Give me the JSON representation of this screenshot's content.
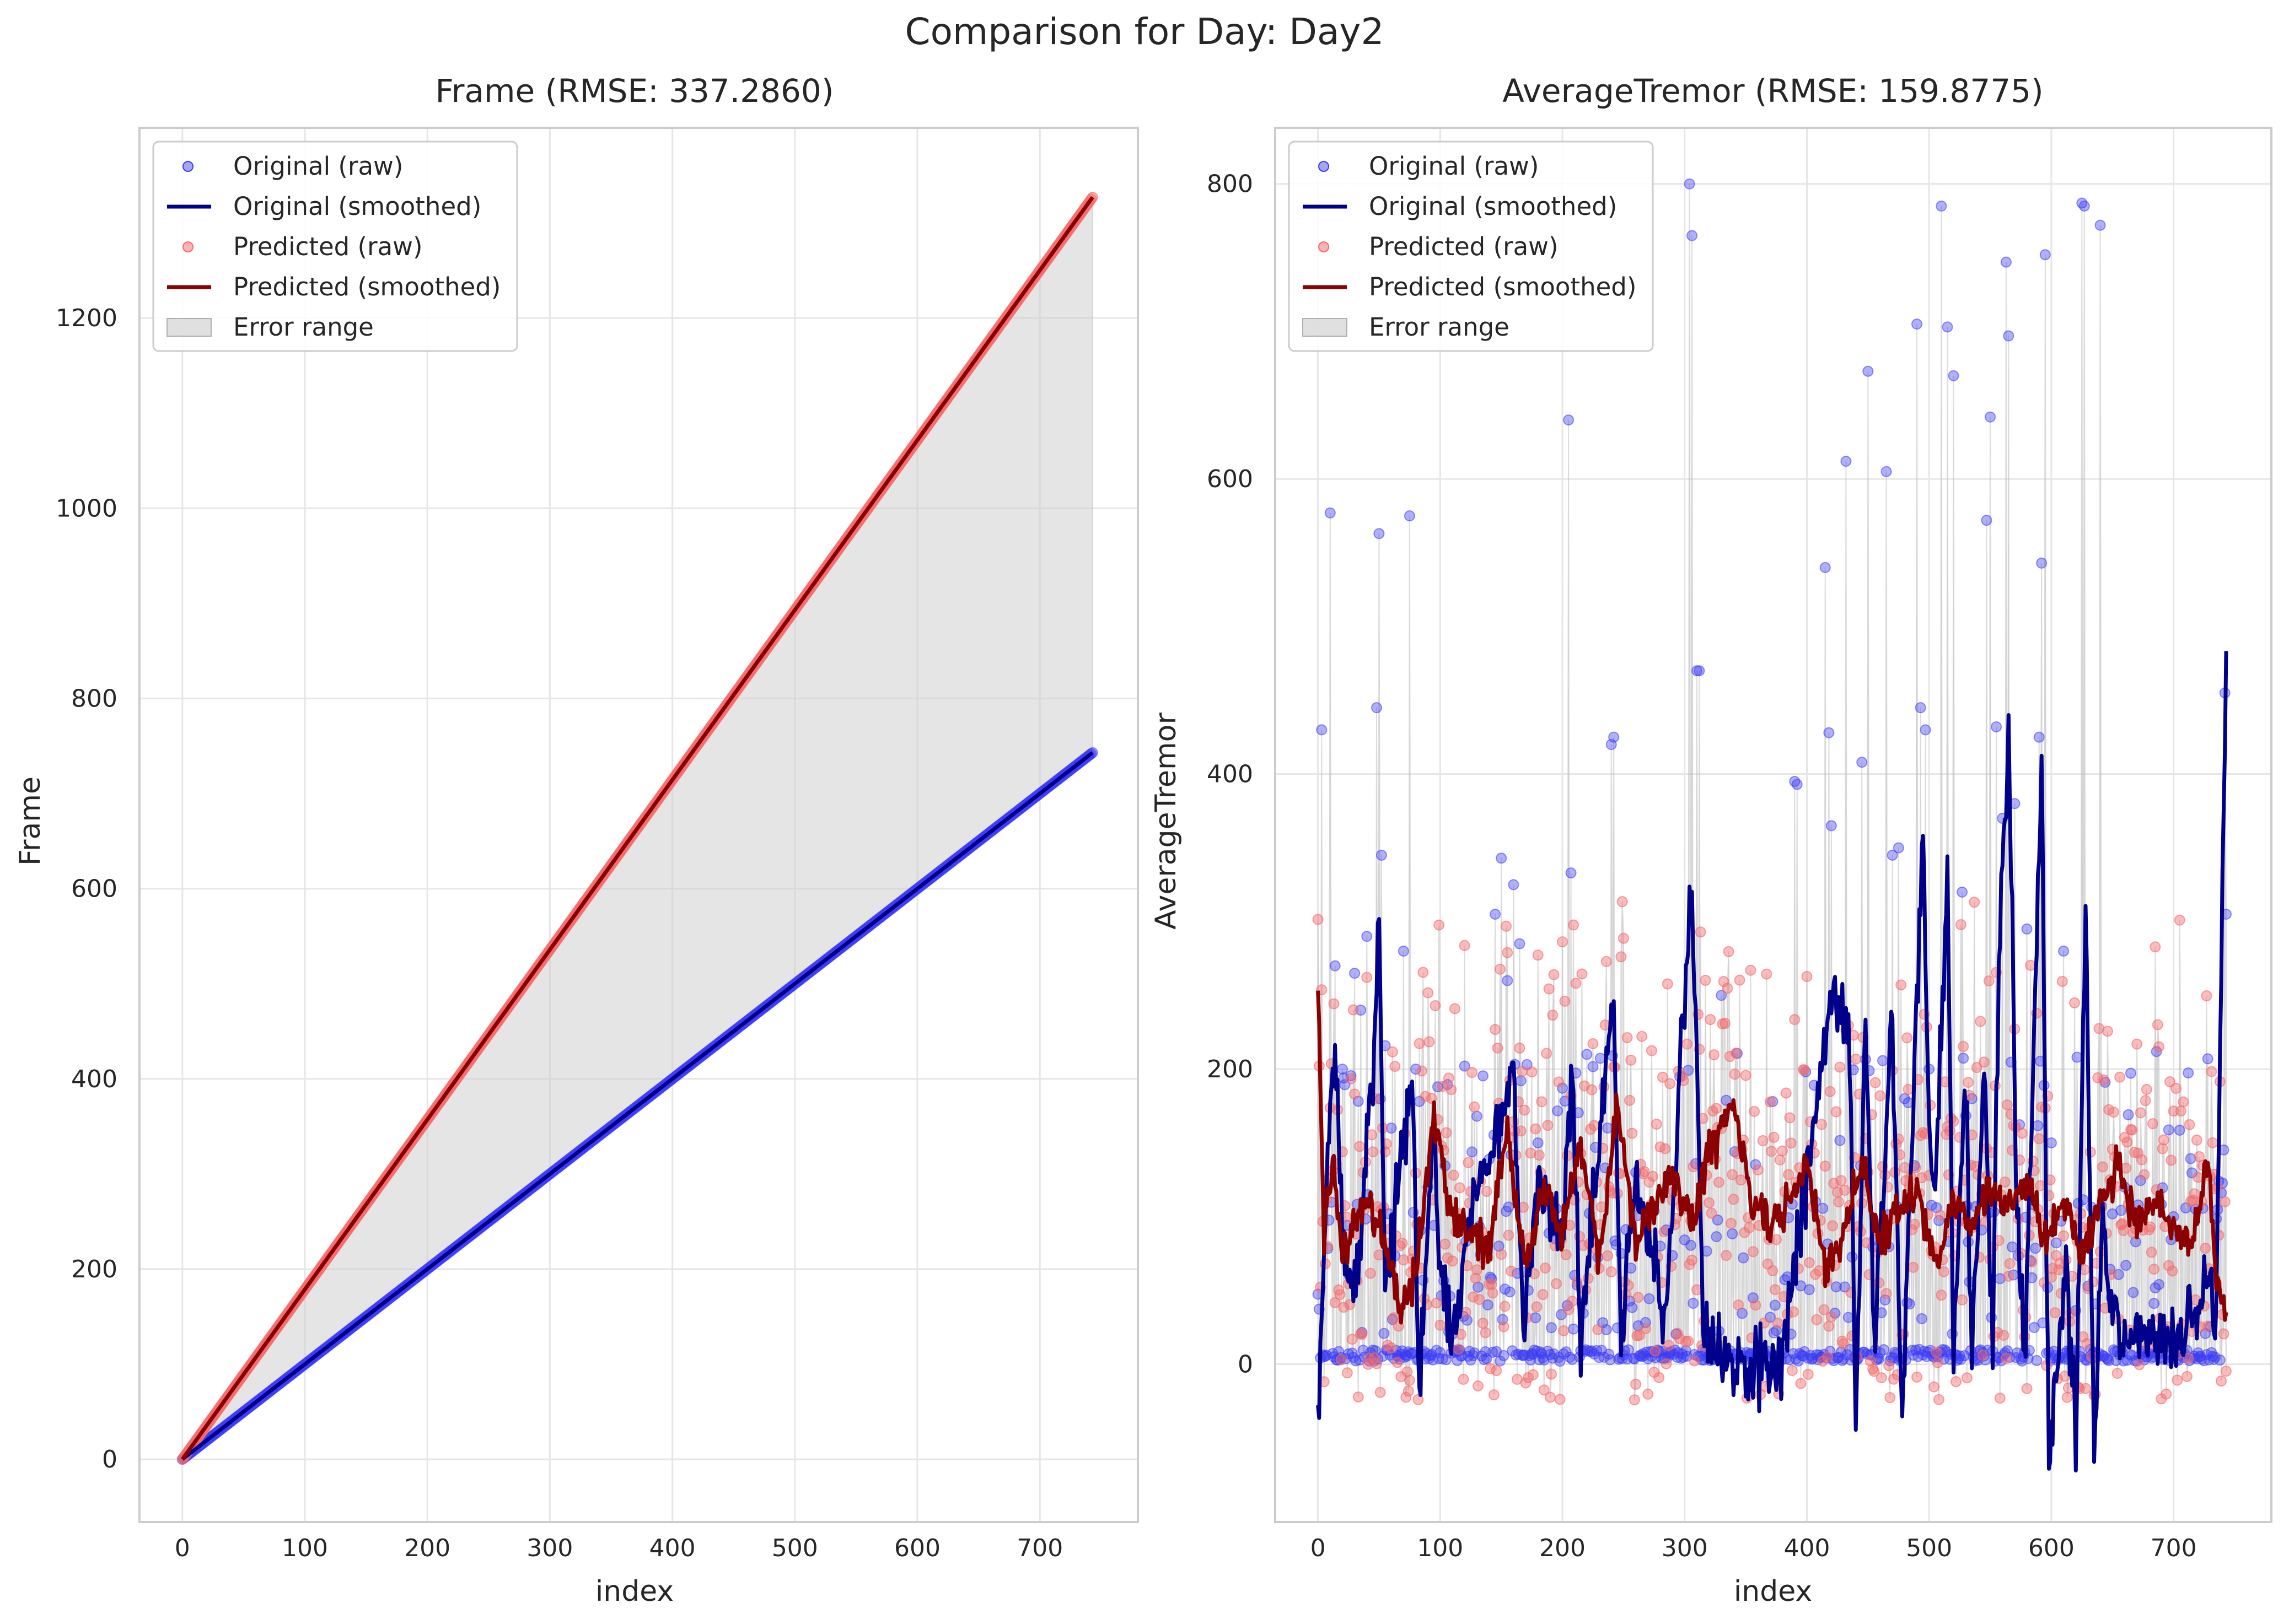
{
  "figure": {
    "suptitle": "Comparison for Day: Day2"
  },
  "colors": {
    "original": "#00008b",
    "original_raw": "#3b3bf5",
    "predicted": "#8b0000",
    "predicted_raw": "#f46a6a",
    "error_fill": "#cccccc",
    "grid": "#e6e6e6",
    "spine": "#cccccc"
  },
  "chart_data": [
    {
      "type": "line",
      "title": "Frame (RMSE: 337.2860)",
      "xlabel": "index",
      "ylabel": "Frame",
      "xlim": [
        -35,
        780
      ],
      "ylim": [
        -66,
        1400
      ],
      "xticks": [
        0,
        100,
        200,
        300,
        400,
        500,
        600,
        700
      ],
      "yticks": [
        0,
        200,
        400,
        600,
        800,
        1000,
        1200
      ],
      "grid": true,
      "legend_position": "top-left",
      "legend": [
        "Original (raw)",
        "Original (smoothed)",
        "Predicted (raw)",
        "Predicted (smoothed)",
        "Error range"
      ],
      "x_range": [
        0,
        743
      ],
      "series": [
        {
          "name": "Original (raw)",
          "kind": "scatter",
          "slope": 1.0,
          "intercept": 0
        },
        {
          "name": "Original (smoothed)",
          "kind": "line",
          "slope": 1.0,
          "intercept": 0
        },
        {
          "name": "Predicted (raw)",
          "kind": "scatter",
          "slope": 1.786,
          "intercept": 0
        },
        {
          "name": "Predicted (smoothed)",
          "kind": "line",
          "slope": 1.786,
          "intercept": 0
        }
      ]
    },
    {
      "type": "line",
      "title": "AverageTremor (RMSE: 159.8775)",
      "xlabel": "index",
      "ylabel": "AverageTremor",
      "xlim": [
        -35,
        780
      ],
      "ylim": [
        -107,
        838
      ],
      "xticks": [
        0,
        100,
        200,
        300,
        400,
        500,
        600,
        700
      ],
      "yticks": [
        0,
        200,
        400,
        600,
        800
      ],
      "grid": true,
      "legend_position": "top-left",
      "legend": [
        "Original (raw)",
        "Original (smoothed)",
        "Predicted (raw)",
        "Predicted (smoothed)",
        "Error range"
      ],
      "x_range": [
        0,
        743
      ],
      "original_spikes": [
        [
          3,
          430
        ],
        [
          10,
          577
        ],
        [
          14,
          270
        ],
        [
          20,
          200
        ],
        [
          30,
          265
        ],
        [
          35,
          240
        ],
        [
          40,
          290
        ],
        [
          48,
          445
        ],
        [
          50,
          563
        ],
        [
          52,
          345
        ],
        [
          60,
          160
        ],
        [
          70,
          280
        ],
        [
          75,
          575
        ],
        [
          80,
          200
        ],
        [
          90,
          120
        ],
        [
          145,
          305
        ],
        [
          150,
          343
        ],
        [
          155,
          260
        ],
        [
          160,
          325
        ],
        [
          165,
          285
        ],
        [
          180,
          150
        ],
        [
          205,
          640
        ],
        [
          207,
          333
        ],
        [
          220,
          210
        ],
        [
          240,
          420
        ],
        [
          242,
          425
        ],
        [
          260,
          130
        ],
        [
          280,
          80
        ],
        [
          304,
          800
        ],
        [
          306,
          765
        ],
        [
          310,
          470
        ],
        [
          312,
          470
        ],
        [
          330,
          250
        ],
        [
          390,
          395
        ],
        [
          392,
          393
        ],
        [
          415,
          540
        ],
        [
          418,
          428
        ],
        [
          420,
          365
        ],
        [
          432,
          612
        ],
        [
          445,
          408
        ],
        [
          450,
          673
        ],
        [
          465,
          605
        ],
        [
          470,
          345
        ],
        [
          475,
          350
        ],
        [
          480,
          180
        ],
        [
          490,
          705
        ],
        [
          493,
          445
        ],
        [
          497,
          430
        ],
        [
          500,
          200
        ],
        [
          510,
          785
        ],
        [
          515,
          703
        ],
        [
          520,
          670
        ],
        [
          527,
          320
        ],
        [
          535,
          180
        ],
        [
          547,
          572
        ],
        [
          550,
          642
        ],
        [
          555,
          432
        ],
        [
          560,
          370
        ],
        [
          563,
          747
        ],
        [
          565,
          697
        ],
        [
          570,
          380
        ],
        [
          580,
          295
        ],
        [
          590,
          425
        ],
        [
          592,
          543
        ],
        [
          595,
          752
        ],
        [
          600,
          150
        ],
        [
          610,
          280
        ],
        [
          625,
          787
        ],
        [
          627,
          785
        ],
        [
          640,
          772
        ],
        [
          660,
          120
        ],
        [
          700,
          100
        ],
        [
          742,
          455
        ],
        [
          743,
          305
        ]
      ],
      "original_smoothed_peaks": [
        [
          0,
          -48
        ],
        [
          8,
          140
        ],
        [
          14,
          222
        ],
        [
          20,
          80
        ],
        [
          30,
          50
        ],
        [
          45,
          200
        ],
        [
          50,
          302
        ],
        [
          55,
          40
        ],
        [
          70,
          160
        ],
        [
          78,
          190
        ],
        [
          83,
          -20
        ],
        [
          95,
          170
        ],
        [
          100,
          60
        ],
        [
          110,
          20
        ],
        [
          125,
          100
        ],
        [
          145,
          155
        ],
        [
          160,
          205
        ],
        [
          168,
          20
        ],
        [
          180,
          130
        ],
        [
          200,
          80
        ],
        [
          208,
          210
        ],
        [
          215,
          0
        ],
        [
          225,
          110
        ],
        [
          242,
          244
        ],
        [
          248,
          10
        ],
        [
          260,
          130
        ],
        [
          285,
          30
        ],
        [
          305,
          328
        ],
        [
          310,
          200
        ],
        [
          315,
          30
        ],
        [
          330,
          0
        ],
        [
          380,
          0
        ],
        [
          400,
          130
        ],
        [
          420,
          250
        ],
        [
          435,
          220
        ],
        [
          440,
          -40
        ],
        [
          448,
          230
        ],
        [
          455,
          10
        ],
        [
          470,
          240
        ],
        [
          478,
          -45
        ],
        [
          485,
          140
        ],
        [
          495,
          360
        ],
        [
          500,
          170
        ],
        [
          505,
          120
        ],
        [
          515,
          330
        ],
        [
          520,
          0
        ],
        [
          530,
          200
        ],
        [
          535,
          0
        ],
        [
          545,
          210
        ],
        [
          552,
          20
        ],
        [
          558,
          300
        ],
        [
          565,
          435
        ],
        [
          572,
          100
        ],
        [
          578,
          0
        ],
        [
          585,
          200
        ],
        [
          592,
          410
        ],
        [
          598,
          -65
        ],
        [
          605,
          20
        ],
        [
          612,
          60
        ],
        [
          620,
          -55
        ],
        [
          628,
          322
        ],
        [
          635,
          -60
        ],
        [
          642,
          100
        ],
        [
          650,
          30
        ],
        [
          700,
          5
        ],
        [
          725,
          60
        ],
        [
          735,
          40
        ],
        [
          743,
          486
        ]
      ],
      "predicted_smoothed_peaks": [
        [
          0,
          250
        ],
        [
          5,
          90
        ],
        [
          12,
          140
        ],
        [
          20,
          70
        ],
        [
          30,
          95
        ],
        [
          40,
          110
        ],
        [
          55,
          80
        ],
        [
          68,
          40
        ],
        [
          80,
          60
        ],
        [
          95,
          170
        ],
        [
          110,
          100
        ],
        [
          125,
          90
        ],
        [
          140,
          80
        ],
        [
          155,
          160
        ],
        [
          170,
          65
        ],
        [
          185,
          120
        ],
        [
          200,
          90
        ],
        [
          215,
          150
        ],
        [
          230,
          70
        ],
        [
          245,
          175
        ],
        [
          260,
          80
        ],
        [
          275,
          105
        ],
        [
          290,
          130
        ],
        [
          305,
          95
        ],
        [
          320,
          140
        ],
        [
          340,
          180
        ],
        [
          355,
          110
        ],
        [
          370,
          90
        ],
        [
          385,
          110
        ],
        [
          400,
          140
        ],
        [
          415,
          60
        ],
        [
          430,
          90
        ],
        [
          445,
          135
        ],
        [
          460,
          85
        ],
        [
          475,
          100
        ],
        [
          490,
          120
        ],
        [
          505,
          70
        ],
        [
          520,
          115
        ],
        [
          535,
          90
        ],
        [
          550,
          125
        ],
        [
          565,
          100
        ],
        [
          580,
          130
        ],
        [
          595,
          80
        ],
        [
          610,
          115
        ],
        [
          625,
          75
        ],
        [
          640,
          110
        ],
        [
          655,
          135
        ],
        [
          670,
          95
        ],
        [
          685,
          110
        ],
        [
          700,
          90
        ],
        [
          715,
          75
        ],
        [
          728,
          140
        ],
        [
          735,
          55
        ],
        [
          743,
          30
        ]
      ],
      "series": [
        {
          "name": "Original (raw)",
          "kind": "scatter"
        },
        {
          "name": "Original (smoothed)",
          "kind": "line"
        },
        {
          "name": "Predicted (raw)",
          "kind": "scatter"
        },
        {
          "name": "Predicted (smoothed)",
          "kind": "line"
        }
      ]
    }
  ]
}
